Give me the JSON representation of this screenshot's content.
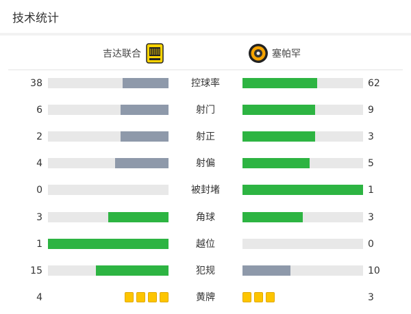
{
  "title": "技术统计",
  "home": {
    "name": "吉达联合",
    "logo": "ittihad-crest"
  },
  "away": {
    "name": "塞帕罕",
    "logo": "sepahan-crest"
  },
  "colors": {
    "green": "#2db442",
    "gray": "#8e99aa",
    "track": "#e8e8e8",
    "card": "#fdc500"
  },
  "stats": [
    {
      "label": "控球率",
      "home": 38,
      "away": 62,
      "home_color": "gray",
      "away_color": "green"
    },
    {
      "label": "射门",
      "home": 6,
      "away": 9,
      "home_color": "gray",
      "away_color": "green"
    },
    {
      "label": "射正",
      "home": 2,
      "away": 3,
      "home_color": "gray",
      "away_color": "green"
    },
    {
      "label": "射偏",
      "home": 4,
      "away": 5,
      "home_color": "gray",
      "away_color": "green"
    },
    {
      "label": "被封堵",
      "home": 0,
      "away": 1,
      "home_color": "gray",
      "away_color": "green"
    },
    {
      "label": "角球",
      "home": 3,
      "away": 3,
      "home_color": "green",
      "away_color": "green"
    },
    {
      "label": "越位",
      "home": 1,
      "away": 0,
      "home_color": "green",
      "away_color": "gray"
    },
    {
      "label": "犯规",
      "home": 15,
      "away": 10,
      "home_color": "green",
      "away_color": "gray"
    }
  ],
  "yellow": {
    "label": "黄牌",
    "home": 4,
    "away": 3
  }
}
